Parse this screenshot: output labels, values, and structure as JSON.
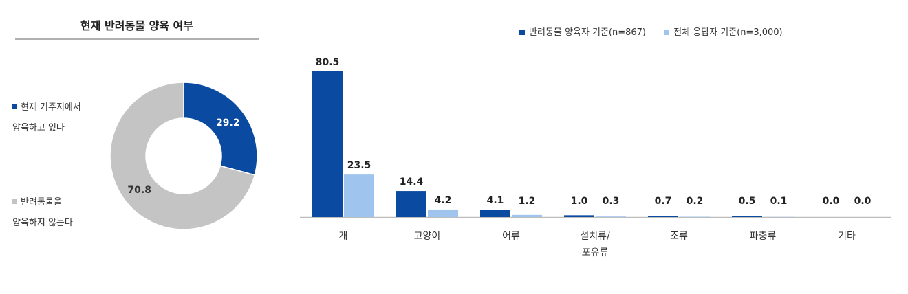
{
  "donut": {
    "title": "현재 반려동물 양육 여부",
    "legend": [
      {
        "line1": "현재 거주지에서",
        "line2": "양육하고 있다",
        "color": "#0a4aa0"
      },
      {
        "line1": "반려동물을",
        "line2": "양육하지 않는다",
        "color": "#c4c4c4"
      }
    ]
  },
  "bar_legend": {
    "items": [
      {
        "label": "반려동물 양육자 기준(n=867)",
        "color": "#0a4aa0"
      },
      {
        "label": "전체 응답자 기준(n=3,000)",
        "color": "#9fc4ee"
      }
    ]
  },
  "chart_data": [
    {
      "type": "pie",
      "title": "현재 반려동물 양육 여부",
      "labels": [
        "현재 거주지에서 양육하고 있다",
        "반려동물을 양육하지 않는다"
      ],
      "values": [
        29.2,
        70.8
      ],
      "value_labels": [
        "29.2",
        "70.8"
      ],
      "colors": [
        "#0a4aa0",
        "#c4c4c4"
      ],
      "donut": true,
      "legend": "left"
    },
    {
      "type": "bar",
      "categories": [
        "개",
        "고양이",
        "어류",
        "설치류/\n포유류",
        "조류",
        "파충류",
        "기타"
      ],
      "series": [
        {
          "name": "반려동물 양육자 기준(n=867)",
          "values": [
            80.5,
            14.4,
            4.1,
            1.0,
            0.7,
            0.5,
            0.0
          ],
          "labels": [
            "80.5",
            "14.4",
            "4.1",
            "1.0",
            "0.7",
            "0.5",
            "0.0"
          ],
          "color": "#0a4aa0"
        },
        {
          "name": "전체 응답자 기준(n=3,000)",
          "values": [
            23.5,
            4.2,
            1.2,
            0.3,
            0.2,
            0.1,
            0.0
          ],
          "labels": [
            "23.5",
            "4.2",
            "1.2",
            "0.3",
            "0.2",
            "0.1",
            "0.0"
          ],
          "color": "#9fc4ee"
        }
      ],
      "ylim": [
        0,
        80.5
      ],
      "grid": false,
      "legend": "top-right"
    }
  ]
}
